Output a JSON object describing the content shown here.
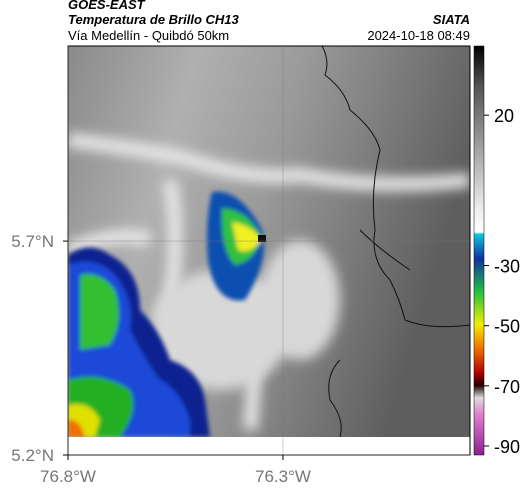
{
  "header": {
    "title": "GOES-EAST",
    "subtitle": "Temperatura de Brillo CH13",
    "source": "SIATA",
    "region": "Vía Medellín - Quibdó 50km",
    "timestamp": "2024-10-18 08:49"
  },
  "map": {
    "latlim": [
      5.2,
      6.156
    ],
    "lonlim": [
      -76.8,
      -75.865
    ],
    "latticks": [
      {
        "value": 5.2,
        "label": "5.2°N"
      },
      {
        "value": 5.7,
        "label": "5.7°N"
      }
    ],
    "lonticks": [
      {
        "value": -76.8,
        "label": "76.8°W"
      },
      {
        "value": -76.3,
        "label": "76.3°W"
      }
    ],
    "grid": true
  },
  "colorbar": {
    "lim": [
      43,
      -93
    ],
    "ticks": [
      20,
      -30,
      -50,
      -70,
      -90
    ]
  }
}
